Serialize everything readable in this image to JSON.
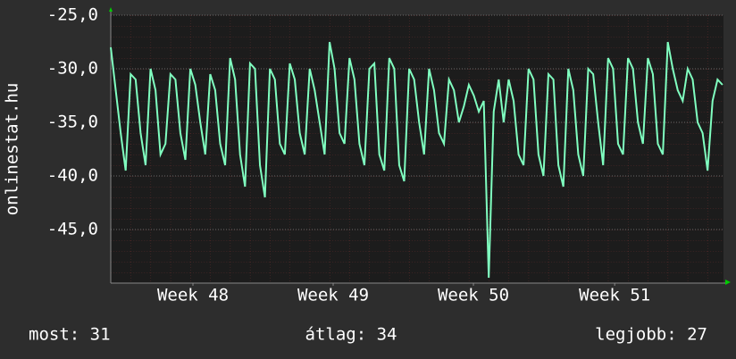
{
  "chart_data": {
    "type": "line",
    "y_label": "onlinestat.hu",
    "stats": [
      "most: 31",
      "átlag: 34",
      "legjobb: 27"
    ],
    "xlim": [
      0,
      30.8
    ],
    "xticks": [
      {
        "value": 4.13,
        "label": "Week 48"
      },
      {
        "value": 11.18,
        "label": "Week 49"
      },
      {
        "value": 18.23,
        "label": "Week 50"
      },
      {
        "value": 25.33,
        "label": "Week 51"
      }
    ],
    "ylim": [
      -50,
      -25
    ],
    "yticks": [
      {
        "value": -25,
        "label": "-25,0"
      },
      {
        "value": -30,
        "label": "-30,0"
      },
      {
        "value": -35,
        "label": "-35,0"
      },
      {
        "value": -40,
        "label": "-40,0"
      },
      {
        "value": -45,
        "label": "-45,0"
      }
    ],
    "grid": true,
    "x": [
      0,
      0.25,
      0.5,
      0.75,
      1,
      1.25,
      1.5,
      1.75,
      2,
      2.25,
      2.5,
      2.75,
      3,
      3.25,
      3.5,
      3.75,
      4,
      4.25,
      4.5,
      4.75,
      5,
      5.25,
      5.5,
      5.75,
      6,
      6.25,
      6.5,
      6.75,
      7,
      7.25,
      7.5,
      7.75,
      8,
      8.25,
      8.5,
      8.75,
      9,
      9.25,
      9.5,
      9.75,
      10,
      10.25,
      10.5,
      10.75,
      11,
      11.25,
      11.5,
      11.75,
      12,
      12.25,
      12.5,
      12.75,
      13,
      13.25,
      13.5,
      13.75,
      14,
      14.25,
      14.5,
      14.75,
      15,
      15.25,
      15.5,
      15.75,
      16,
      16.25,
      16.5,
      16.75,
      17,
      17.25,
      17.5,
      17.75,
      18,
      18.25,
      18.5,
      18.75,
      19,
      19.25,
      19.5,
      19.75,
      20,
      20.25,
      20.5,
      20.75,
      21,
      21.25,
      21.5,
      21.75,
      22,
      22.25,
      22.5,
      22.75,
      23,
      23.25,
      23.5,
      23.75,
      24,
      24.25,
      24.5,
      24.75,
      25,
      25.25,
      25.5,
      25.75,
      26,
      26.25,
      26.5,
      26.75,
      27,
      27.25,
      27.5,
      27.75,
      28,
      28.25,
      28.5,
      28.75,
      29,
      29.25,
      29.5,
      29.75,
      30,
      30.25,
      30.5,
      30.75
    ],
    "series": [
      {
        "color": "#80ffc0",
        "values": [
          -28,
          -32,
          -36,
          -39.5,
          -30.5,
          -31,
          -36,
          -39,
          -30,
          -32,
          -38,
          -37,
          -30.5,
          -31,
          -36,
          -38.5,
          -30,
          -31.5,
          -35,
          -38,
          -30.5,
          -32,
          -37,
          -39,
          -29,
          -31,
          -38,
          -41,
          -29.5,
          -30,
          -39,
          -42,
          -30,
          -31,
          -37,
          -38,
          -29.5,
          -31,
          -36,
          -38,
          -30,
          -32,
          -35,
          -38,
          -27.5,
          -30,
          -36,
          -37,
          -29,
          -31,
          -37,
          -39,
          -30,
          -29.5,
          -38,
          -39.5,
          -29,
          -30,
          -39,
          -40.5,
          -30,
          -31,
          -35,
          -38,
          -30,
          -32,
          -36,
          -37,
          -31,
          -32,
          -35,
          -33.5,
          -31.5,
          -32.5,
          -34,
          -33,
          -49.5,
          -34,
          -31,
          -35,
          -31,
          -33,
          -38,
          -39,
          -30,
          -31,
          -38,
          -40,
          -30.5,
          -31,
          -39,
          -41,
          -30,
          -32,
          -38,
          -40,
          -30,
          -30.5,
          -35,
          -39,
          -29,
          -30,
          -37,
          -38,
          -29,
          -30,
          -35,
          -37,
          -29,
          -30.5,
          -37,
          -38,
          -27.5,
          -30,
          -32,
          -33,
          -30,
          -31,
          -35,
          -36,
          -39.5,
          -33,
          -31,
          -31.5
        ]
      }
    ]
  }
}
